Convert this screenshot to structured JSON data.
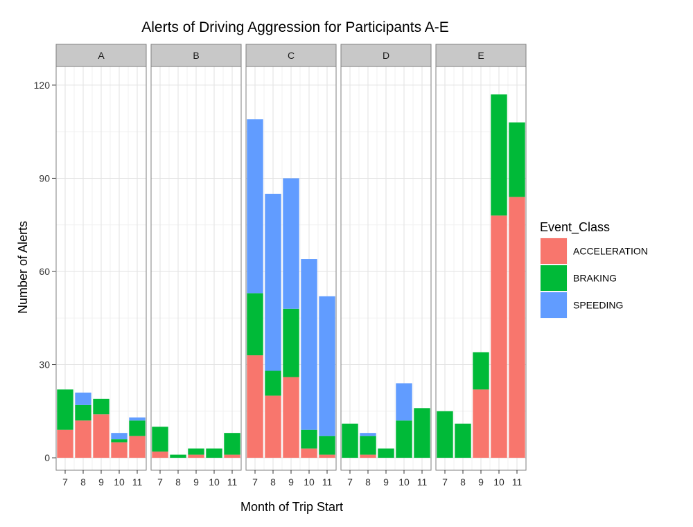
{
  "chart_data": {
    "type": "bar",
    "stacked": true,
    "faceted": true,
    "title": "Alerts of Driving Aggression for Participants A-E",
    "xlabel": "Month of Trip Start",
    "ylabel": "Number of Alerts",
    "ylim": [
      -4,
      126
    ],
    "y_ticks": [
      0,
      30,
      60,
      90,
      120
    ],
    "grid": true,
    "legend": {
      "title": "Event_Class",
      "placement": "right",
      "entries": [
        {
          "name": "ACCELERATION",
          "color": "#F8766D"
        },
        {
          "name": "BRAKING",
          "color": "#00BA38"
        },
        {
          "name": "SPEEDING",
          "color": "#619CFF"
        }
      ]
    },
    "panels": [
      {
        "label": "A",
        "categories": [
          "7",
          "8",
          "9",
          "10",
          "11"
        ],
        "series": [
          {
            "name": "ACCELERATION",
            "values": [
              9,
              12,
              14,
              5,
              7
            ]
          },
          {
            "name": "BRAKING",
            "values": [
              13,
              5,
              5,
              1,
              5
            ]
          },
          {
            "name": "SPEEDING",
            "values": [
              0,
              4,
              0,
              2,
              1
            ]
          }
        ]
      },
      {
        "label": "B",
        "categories": [
          "7",
          "8",
          "9",
          "10",
          "11"
        ],
        "series": [
          {
            "name": "ACCELERATION",
            "values": [
              2,
              0,
              1,
              0,
              1
            ]
          },
          {
            "name": "BRAKING",
            "values": [
              8,
              1,
              2,
              3,
              7
            ]
          },
          {
            "name": "SPEEDING",
            "values": [
              0,
              0,
              0,
              0,
              0
            ]
          }
        ]
      },
      {
        "label": "C",
        "categories": [
          "7",
          "8",
          "9",
          "10",
          "11"
        ],
        "series": [
          {
            "name": "ACCELERATION",
            "values": [
              33,
              20,
              26,
              3,
              1
            ]
          },
          {
            "name": "BRAKING",
            "values": [
              20,
              8,
              22,
              6,
              6
            ]
          },
          {
            "name": "SPEEDING",
            "values": [
              56,
              57,
              42,
              55,
              45
            ]
          }
        ]
      },
      {
        "label": "D",
        "categories": [
          "7",
          "8",
          "9",
          "10",
          "11"
        ],
        "series": [
          {
            "name": "ACCELERATION",
            "values": [
              0,
              1,
              0,
              0,
              0
            ]
          },
          {
            "name": "BRAKING",
            "values": [
              11,
              6,
              3,
              12,
              16
            ]
          },
          {
            "name": "SPEEDING",
            "values": [
              0,
              1,
              0,
              12,
              0
            ]
          }
        ]
      },
      {
        "label": "E",
        "categories": [
          "7",
          "8",
          "9",
          "10",
          "11"
        ],
        "series": [
          {
            "name": "ACCELERATION",
            "values": [
              0,
              0,
              22,
              78,
              84
            ]
          },
          {
            "name": "BRAKING",
            "values": [
              15,
              11,
              12,
              39,
              24
            ]
          },
          {
            "name": "SPEEDING",
            "values": [
              0,
              0,
              0,
              0,
              0
            ]
          }
        ]
      }
    ]
  }
}
